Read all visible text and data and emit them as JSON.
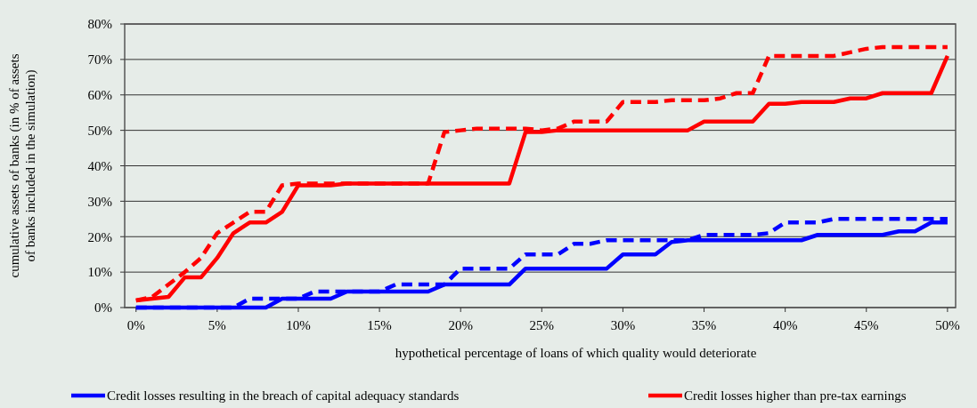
{
  "chart_data": {
    "type": "line",
    "xlabel": "hypothetical percentage of loans of which quality would deteriorate",
    "ylabel": "cumulative assets of banks (in % of assets of banks included in the simulation)",
    "x": [
      0,
      1,
      2,
      3,
      4,
      5,
      6,
      7,
      8,
      9,
      10,
      11,
      12,
      13,
      14,
      15,
      16,
      17,
      18,
      19,
      20,
      21,
      22,
      23,
      24,
      25,
      26,
      27,
      28,
      29,
      30,
      31,
      32,
      33,
      34,
      35,
      36,
      37,
      38,
      39,
      40,
      41,
      42,
      43,
      44,
      45,
      46,
      47,
      48,
      49,
      50
    ],
    "series": [
      {
        "name": "Credit losses resulting in the breach of capital adequacy standards",
        "color": "#0000ff",
        "line_style": "solid",
        "values": [
          0,
          0,
          0,
          0,
          0,
          0,
          0,
          0,
          0,
          2.5,
          2.5,
          2.5,
          2.5,
          4.5,
          4.5,
          4.5,
          4.5,
          4.5,
          4.5,
          6.5,
          6.5,
          6.5,
          6.5,
          6.5,
          11,
          11,
          11,
          11,
          11,
          11,
          15,
          15,
          15,
          18.5,
          19,
          19,
          19,
          19,
          19,
          19,
          19,
          19,
          20.5,
          20.5,
          20.5,
          20.5,
          20.5,
          21.5,
          21.5,
          24,
          24
        ]
      },
      {
        "color": "#0000ff",
        "line_style": "dashed",
        "values": [
          0,
          0,
          0,
          0,
          0,
          0,
          0,
          2.5,
          2.5,
          2.5,
          2.5,
          4.5,
          4.5,
          4.5,
          4.5,
          4.5,
          6.5,
          6.5,
          6.5,
          6.5,
          11,
          11,
          11,
          11,
          15,
          15,
          15,
          18,
          18,
          19,
          19,
          19,
          19,
          19,
          19,
          20.5,
          20.5,
          20.5,
          20.5,
          21,
          24,
          24,
          24,
          25,
          25,
          25,
          25,
          25,
          25,
          25,
          25
        ]
      },
      {
        "name": "Credit losses higher than pre-tax earnings",
        "color": "#ff0000",
        "line_style": "solid",
        "values": [
          2,
          2.5,
          3,
          8.5,
          8.5,
          14,
          21,
          24,
          24,
          27,
          34.5,
          34.5,
          34.5,
          35,
          35,
          35,
          35,
          35,
          35,
          35,
          35,
          35,
          35,
          35,
          49.5,
          49.5,
          50,
          50,
          50,
          50,
          50,
          50,
          50,
          50,
          50,
          52.5,
          52.5,
          52.5,
          52.5,
          57.5,
          57.5,
          58,
          58,
          58,
          59,
          59,
          60.5,
          60.5,
          60.5,
          60.5,
          71
        ]
      },
      {
        "color": "#ff0000",
        "line_style": "dashed",
        "values": [
          2,
          3,
          6.5,
          10,
          14,
          21,
          24,
          27,
          27,
          34.5,
          35,
          35,
          35,
          35,
          35,
          35,
          35,
          35,
          35,
          49.5,
          50,
          50.5,
          50.5,
          50.5,
          50.5,
          50,
          50.5,
          52.5,
          52.5,
          52.5,
          58,
          58,
          58,
          58.5,
          58.5,
          58.5,
          59,
          60.5,
          60.5,
          71,
          71,
          71,
          71,
          71,
          72,
          73,
          73.5,
          73.5,
          73.5,
          73.5,
          73.5
        ]
      }
    ],
    "xlim": [
      -0.7,
      50.5
    ],
    "xticks": [
      {
        "value": 0,
        "label": "0%"
      },
      {
        "value": 5,
        "label": "5%"
      },
      {
        "value": 10,
        "label": "10%"
      },
      {
        "value": 15,
        "label": "15%"
      },
      {
        "value": 20,
        "label": "20%"
      },
      {
        "value": 25,
        "label": "25%"
      },
      {
        "value": 30,
        "label": "30%"
      },
      {
        "value": 35,
        "label": "35%"
      },
      {
        "value": 40,
        "label": "40%"
      },
      {
        "value": 45,
        "label": "45%"
      },
      {
        "value": 50,
        "label": "50%"
      }
    ],
    "ylim": [
      0,
      80
    ],
    "yticks": [
      {
        "value": 0,
        "label": "0%"
      },
      {
        "value": 10,
        "label": "10%"
      },
      {
        "value": 20,
        "label": "20%"
      },
      {
        "value": 30,
        "label": "30%"
      },
      {
        "value": 40,
        "label": "40%"
      },
      {
        "value": 50,
        "label": "50%"
      },
      {
        "value": 60,
        "label": "60%"
      },
      {
        "value": 70,
        "label": "70%"
      },
      {
        "value": 80,
        "label": "80%"
      }
    ],
    "grid": "y",
    "legend": "bottom",
    "marker": "none"
  }
}
